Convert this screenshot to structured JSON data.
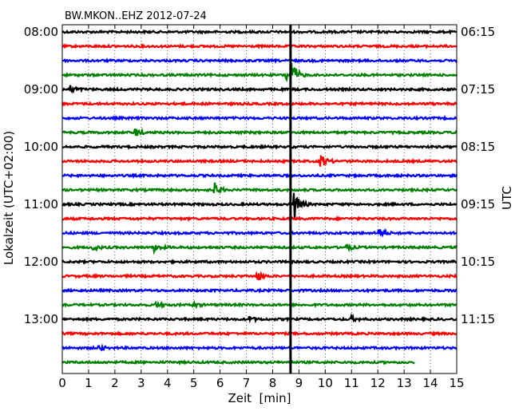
{
  "chart_data": {
    "type": "line",
    "title": "BW.MKON..EHZ 2012-07-24",
    "xlabel": "Zeit  [min]",
    "ylabel_left": "Lokalzeit (UTC+02:00)",
    "ylabel_right": "UTC",
    "xlim": [
      0,
      15
    ],
    "x_ticks": [
      "0",
      "1",
      "2",
      "3",
      "4",
      "5",
      "6",
      "7",
      "8",
      "9",
      "10",
      "11",
      "12",
      "13",
      "14",
      "15"
    ],
    "y_ticks_left": [
      "08:00",
      "09:00",
      "10:00",
      "11:00",
      "12:00",
      "13:00"
    ],
    "y_ticks_right": [
      "06:15",
      "07:15",
      "08:15",
      "09:15",
      "10:15",
      "11:15"
    ],
    "trace_colors": [
      "#000000",
      "#ff0000",
      "#0000ff",
      "#008000"
    ],
    "trace_count": 24,
    "last_trace_end_min": 13.4,
    "marker_min": 8.68,
    "events": [
      {
        "trace": 3,
        "at_min": 8.75,
        "amp": 14
      },
      {
        "trace": 3,
        "at_min": 8.55,
        "amp": 7
      },
      {
        "trace": 4,
        "at_min": 0.35,
        "amp": 4
      },
      {
        "trace": 7,
        "at_min": 2.8,
        "amp": 5
      },
      {
        "trace": 9,
        "at_min": 9.85,
        "amp": 8
      },
      {
        "trace": 11,
        "at_min": 5.8,
        "amp": 8
      },
      {
        "trace": 12,
        "at_min": 8.85,
        "amp": 18
      },
      {
        "trace": 14,
        "at_min": 12.05,
        "amp": 6
      },
      {
        "trace": 15,
        "at_min": 1.15,
        "amp": 4
      },
      {
        "trace": 15,
        "at_min": 3.5,
        "amp": 5
      },
      {
        "trace": 15,
        "at_min": 10.8,
        "amp": 4
      },
      {
        "trace": 17,
        "at_min": 7.4,
        "amp": 6
      },
      {
        "trace": 19,
        "at_min": 3.6,
        "amp": 3
      },
      {
        "trace": 19,
        "at_min": 4.95,
        "amp": 3
      },
      {
        "trace": 20,
        "at_min": 7.1,
        "amp": 3
      },
      {
        "trace": 20,
        "at_min": 11.0,
        "amp": 3
      },
      {
        "trace": 22,
        "at_min": 1.4,
        "amp": 3
      }
    ]
  }
}
